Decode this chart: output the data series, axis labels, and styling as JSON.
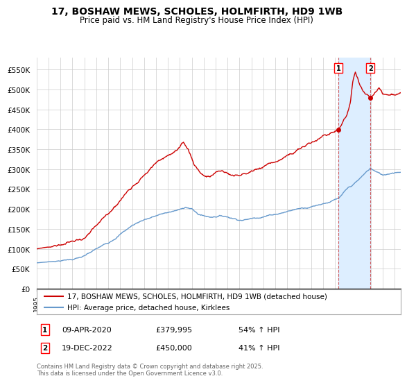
{
  "title": "17, BOSHAW MEWS, SCHOLES, HOLMFIRTH, HD9 1WB",
  "subtitle": "Price paid vs. HM Land Registry's House Price Index (HPI)",
  "ylim": [
    0,
    580000
  ],
  "yticks": [
    0,
    50000,
    100000,
    150000,
    200000,
    250000,
    300000,
    350000,
    400000,
    450000,
    500000,
    550000
  ],
  "ytick_labels": [
    "£0",
    "£50K",
    "£100K",
    "£150K",
    "£200K",
    "£250K",
    "£300K",
    "£350K",
    "£400K",
    "£450K",
    "£500K",
    "£550K"
  ],
  "line1_color": "#cc0000",
  "line2_color": "#6699cc",
  "shade_color": "#ddeeff",
  "transaction1_date": 2020.27,
  "transaction1_price": 379995,
  "transaction2_date": 2022.97,
  "transaction2_price": 450000,
  "legend_line1": "17, BOSHAW MEWS, SCHOLES, HOLMFIRTH, HD9 1WB (detached house)",
  "legend_line2": "HPI: Average price, detached house, Kirklees",
  "footer": "Contains HM Land Registry data © Crown copyright and database right 2025.\nThis data is licensed under the Open Government Licence v3.0.",
  "background_color": "#ffffff",
  "grid_color": "#cccccc",
  "xstart": 1995,
  "xend": 2025.5
}
